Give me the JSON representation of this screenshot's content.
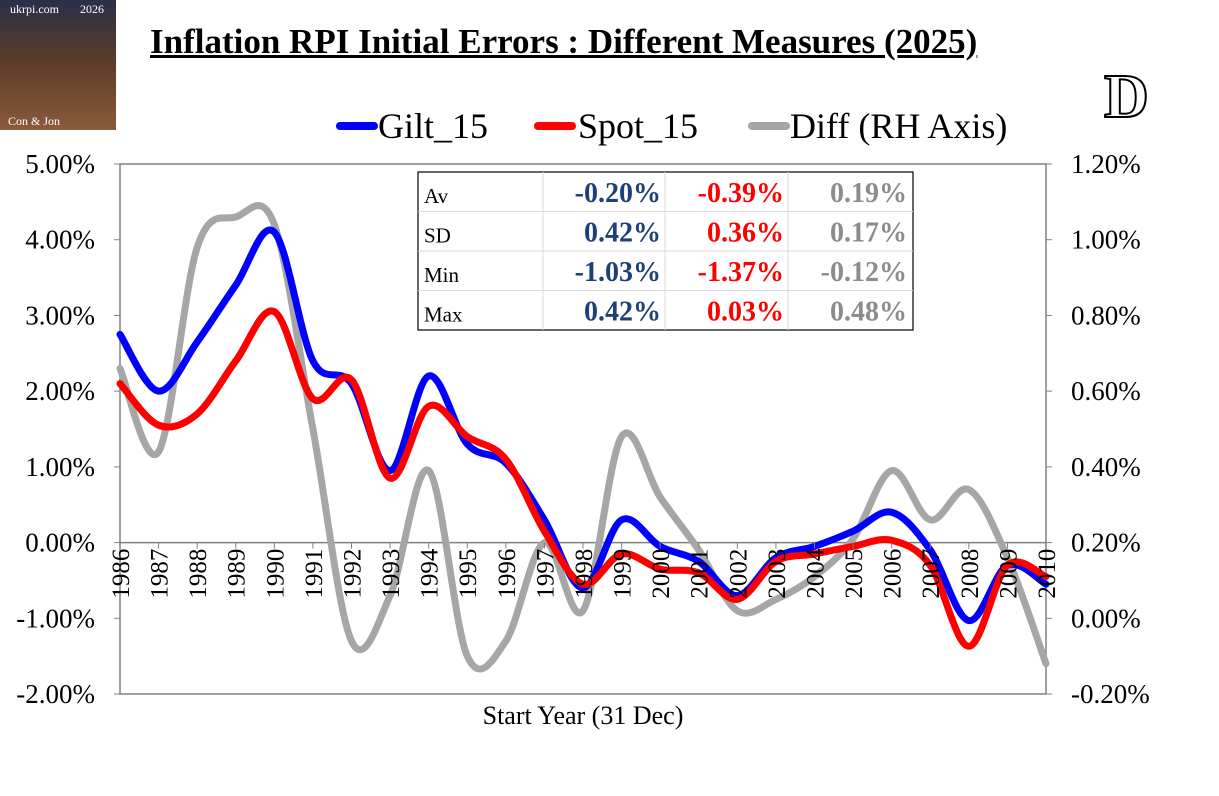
{
  "logo": {
    "site": "ukrpi.com",
    "year": "2026",
    "credit": "Con & Jon"
  },
  "corner_letter": "D",
  "chart_data": {
    "type": "line",
    "title": "Inflation RPI Initial Errors : Different Measures (2025)",
    "xlabel": "Start Year (31 Dec)",
    "ylabel": "",
    "ylim": [
      -0.02,
      0.05
    ],
    "y2lim": [
      -0.002,
      0.012
    ],
    "y_ticks": [
      "5.00%",
      "4.00%",
      "3.00%",
      "2.00%",
      "1.00%",
      "0.00%",
      "-1.00%",
      "-2.00%"
    ],
    "y2_ticks": [
      "1.20%",
      "1.00%",
      "0.80%",
      "0.60%",
      "0.40%",
      "0.20%",
      "0.00%",
      "-0.20%"
    ],
    "categories": [
      "1986",
      "1987",
      "1988",
      "1989",
      "1990",
      "1991",
      "1992",
      "1993",
      "1994",
      "1995",
      "1996",
      "1997",
      "1998",
      "1999",
      "2000",
      "2001",
      "2002",
      "2003",
      "2004",
      "2005",
      "2006",
      "2007",
      "2008",
      "2009",
      "2010"
    ],
    "legend_position": "top",
    "series": [
      {
        "name": "Gilt_15",
        "color": "#0000ff",
        "axis": "left",
        "values": [
          0.0275,
          0.02,
          0.0265,
          0.034,
          0.041,
          0.024,
          0.021,
          0.0095,
          0.022,
          0.013,
          0.0105,
          0.003,
          -0.006,
          0.003,
          -0.0005,
          -0.0025,
          -0.007,
          -0.002,
          -0.0005,
          0.0015,
          0.004,
          -0.001,
          -0.0103,
          -0.003,
          -0.0055
        ]
      },
      {
        "name": "Spot_15",
        "color": "#ff0000",
        "axis": "left",
        "values": [
          0.021,
          0.0155,
          0.017,
          0.024,
          0.0305,
          0.019,
          0.0215,
          0.0085,
          0.018,
          0.014,
          0.011,
          0.0015,
          -0.0055,
          -0.0015,
          -0.0035,
          -0.004,
          -0.0075,
          -0.0025,
          -0.0015,
          -0.0005,
          0.0003,
          -0.003,
          -0.0137,
          -0.003,
          -0.0045
        ]
      },
      {
        "name": "Diff (RH Axis)",
        "color": "#a6a6a6",
        "axis": "right",
        "values": [
          0.0066,
          0.0044,
          0.0098,
          0.0106,
          0.0104,
          0.005,
          -0.0006,
          0.0006,
          0.0039,
          -0.001,
          -0.0006,
          0.002,
          0.0002,
          0.0048,
          0.0032,
          0.0018,
          0.0002,
          0.0005,
          0.0011,
          0.0021,
          0.0039,
          0.0026,
          0.0034,
          0.0016,
          -0.0012
        ]
      }
    ],
    "stats_table": {
      "rows": [
        {
          "label": "Av",
          "gilt": "-0.20%",
          "spot": "-0.39%",
          "diff": "0.19%"
        },
        {
          "label": "SD",
          "gilt": "0.42%",
          "spot": "0.36%",
          "diff": "0.17%"
        },
        {
          "label": "Min",
          "gilt": "-1.03%",
          "spot": "-1.37%",
          "diff": "-0.12%"
        },
        {
          "label": "Max",
          "gilt": "0.42%",
          "spot": "0.03%",
          "diff": "0.48%"
        }
      ],
      "colors": {
        "gilt": "#1f3f7a",
        "spot": "#ff0000",
        "diff": "#8c8c8c"
      }
    }
  }
}
